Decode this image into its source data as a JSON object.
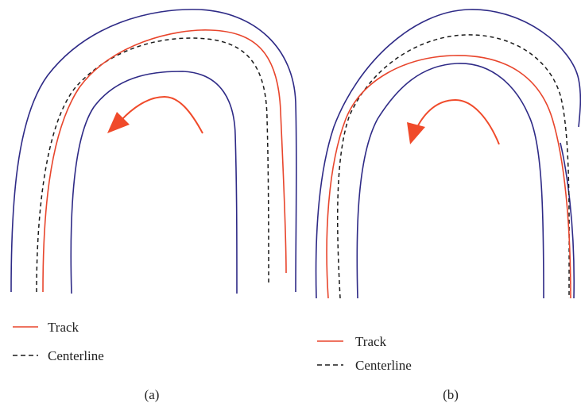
{
  "colors": {
    "boundary": "#2e2a86",
    "track": "#e8452c",
    "centerline": "#1a1a1a",
    "arrow": "#f04a2a"
  },
  "panel_a": {
    "caption": "(a)",
    "legend_track": "Track",
    "legend_centerline": "Centerline"
  },
  "panel_b": {
    "caption": "(b)",
    "legend_track": "Track",
    "legend_centerline": "Centerline"
  }
}
